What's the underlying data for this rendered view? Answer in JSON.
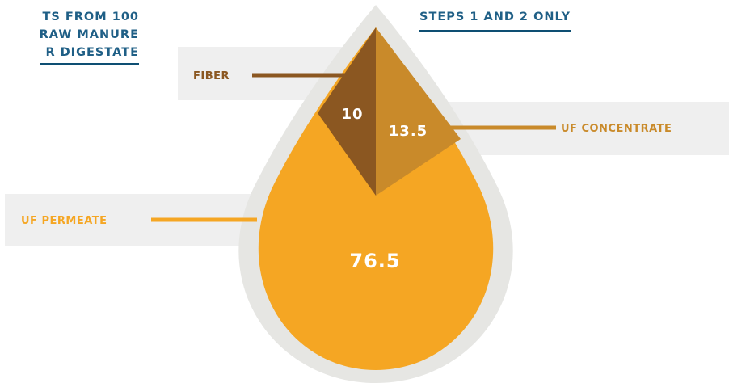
{
  "headings": {
    "left_lines": [
      "TS FROM 100",
      "RAW MANURE",
      "R DIGESTATE"
    ],
    "right": "STEPS 1 AND 2 ONLY"
  },
  "colors": {
    "heading_text": "#1f5f86",
    "heading_rule": "#0e4f73",
    "label_band": "#efefef",
    "drop_outline": "#e6e6e3",
    "fiber": "#8b5721",
    "uf_concentrate": "#c98a2a",
    "uf_permeate": "#f5a623"
  },
  "chart_data": {
    "type": "pie",
    "shape": "teardrop",
    "title": "",
    "units": "",
    "slices": [
      {
        "label": "FIBER",
        "value": 10,
        "value_label": "10",
        "color": "#8b5721"
      },
      {
        "label": "UF CONCENTRATE",
        "value": 13.5,
        "value_label": "13.5",
        "color": "#c98a2a"
      },
      {
        "label": "UF PERMEATE",
        "value": 76.5,
        "value_label": "76.5",
        "color": "#f5a623"
      }
    ]
  }
}
